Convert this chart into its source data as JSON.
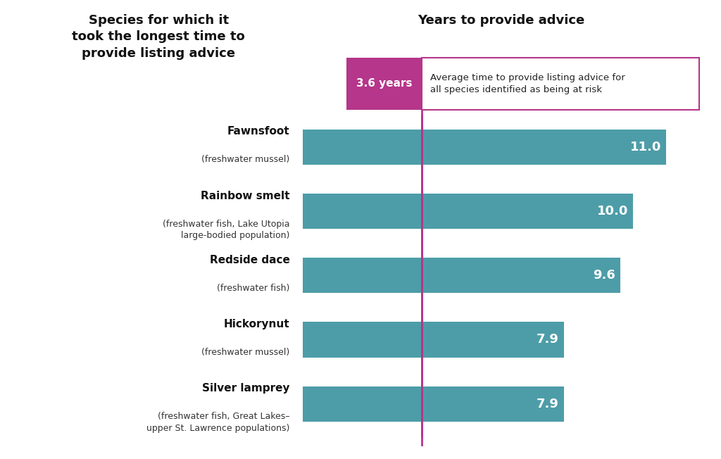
{
  "title_left": "Species for which it\ntook the longest time to\nprovide listing advice",
  "title_right": "Years to provide advice",
  "label_names_bold": [
    "Fawnsfoot",
    "Rainbow smelt",
    "Redside dace",
    "Hickorynut",
    "Silver lamprey"
  ],
  "label_names_regular": [
    "(freshwater mussel)",
    "(freshwater fish, Lake Utopia\nlarge-bodied population)",
    "(freshwater fish)",
    "(freshwater mussel)",
    "(freshwater fish, Great Lakes–\nupper St. Lawrence populations)"
  ],
  "values": [
    11.0,
    10.0,
    9.6,
    7.9,
    7.9
  ],
  "bar_color": "#4d9da8",
  "avg_line_value": 3.6,
  "avg_label": "3.6 years",
  "avg_box_text": "Average time to provide listing advice for\nall species identified as being at risk",
  "avg_label_bg": "#b5368a",
  "avg_box_border": "#b5368a",
  "value_label_color": "#ffffff",
  "background_color": "#ffffff",
  "xlim_max": 12.0,
  "bar_height": 0.55,
  "title_fontsize": 13,
  "label_bold_fontsize": 11,
  "label_reg_fontsize": 9,
  "value_fontsize": 13
}
